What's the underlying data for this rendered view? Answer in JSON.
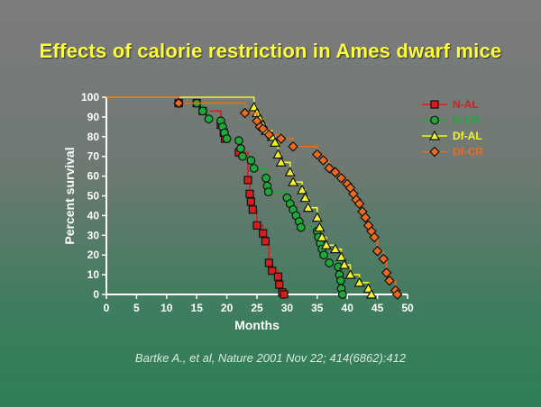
{
  "slide": {
    "title": "Effects of calorie restriction in Ames dwarf mice",
    "citation": "Bartke A., et al, Nature 2001 Nov 22; 414(6862):412"
  },
  "colors": {
    "N-AL": "#d81d1d",
    "N-CR": "#1fa83a",
    "Df-AL": "#f4f42a",
    "Df-CR": "#ee6a1c",
    "axis": "#ffffff"
  },
  "chart_data": {
    "type": "line",
    "step": true,
    "title": "",
    "xlabel": "Months",
    "ylabel": "Percent survival",
    "xlim": [
      0,
      50
    ],
    "ylim": [
      0,
      100
    ],
    "xticks": [
      0,
      5,
      10,
      15,
      20,
      25,
      30,
      35,
      40,
      45,
      50
    ],
    "yticks": [
      0,
      10,
      20,
      30,
      40,
      50,
      60,
      70,
      80,
      90,
      100
    ],
    "grid": false,
    "legend_position": "top-right",
    "series": [
      {
        "name": "N-AL",
        "marker": "square",
        "start": [
          0,
          100
        ],
        "points": [
          [
            12,
            97
          ],
          [
            15,
            97
          ],
          [
            16,
            93
          ],
          [
            19,
            86
          ],
          [
            19.5,
            82
          ],
          [
            19.7,
            79
          ],
          [
            22,
            72
          ],
          [
            23.5,
            58
          ],
          [
            23.8,
            51
          ],
          [
            24,
            47
          ],
          [
            24.3,
            43
          ],
          [
            25,
            35
          ],
          [
            26,
            31
          ],
          [
            26.4,
            27
          ],
          [
            27,
            16
          ],
          [
            27.5,
            12
          ],
          [
            28.5,
            9
          ],
          [
            28.7,
            5
          ],
          [
            29.2,
            1
          ],
          [
            29.5,
            0
          ]
        ]
      },
      {
        "name": "N-CR",
        "marker": "circle",
        "start": [
          0,
          100
        ],
        "points": [
          [
            12,
            97
          ],
          [
            15,
            97
          ],
          [
            16,
            93
          ],
          [
            17,
            89
          ],
          [
            19,
            88
          ],
          [
            19.3,
            85
          ],
          [
            19.6,
            82
          ],
          [
            20,
            79
          ],
          [
            22,
            78
          ],
          [
            22.3,
            74
          ],
          [
            22.6,
            70
          ],
          [
            24,
            68
          ],
          [
            24.5,
            64
          ],
          [
            26.5,
            59
          ],
          [
            26.7,
            55
          ],
          [
            26.9,
            52
          ],
          [
            30,
            49
          ],
          [
            30.5,
            46
          ],
          [
            31,
            43
          ],
          [
            31.5,
            40
          ],
          [
            32,
            37
          ],
          [
            32.3,
            34
          ],
          [
            35,
            32
          ],
          [
            35.2,
            29
          ],
          [
            35.5,
            26
          ],
          [
            35.8,
            23
          ],
          [
            36.1,
            20
          ],
          [
            37,
            16
          ],
          [
            38.5,
            14
          ],
          [
            38.7,
            10
          ],
          [
            38.9,
            7
          ],
          [
            39,
            3
          ],
          [
            39.2,
            0
          ]
        ]
      },
      {
        "name": "Df-AL",
        "marker": "triangle",
        "start": [
          0,
          100
        ],
        "points": [
          [
            24.5,
            95
          ],
          [
            25,
            92
          ],
          [
            25.5,
            89
          ],
          [
            26,
            86
          ],
          [
            26.5,
            83
          ],
          [
            27.5,
            80
          ],
          [
            28,
            77
          ],
          [
            28.5,
            71
          ],
          [
            29,
            67
          ],
          [
            30.5,
            62
          ],
          [
            31,
            57
          ],
          [
            32.5,
            53
          ],
          [
            33,
            49
          ],
          [
            33.5,
            44
          ],
          [
            35,
            39
          ],
          [
            35.4,
            34
          ],
          [
            35.8,
            29
          ],
          [
            36.5,
            25
          ],
          [
            38,
            23
          ],
          [
            39,
            19
          ],
          [
            39.5,
            15
          ],
          [
            40.5,
            10
          ],
          [
            42,
            6
          ],
          [
            43.5,
            3
          ],
          [
            44,
            0
          ]
        ]
      },
      {
        "name": "Df-CR",
        "marker": "diamond",
        "start": [
          0,
          100
        ],
        "points": [
          [
            12,
            97
          ],
          [
            23,
            92
          ],
          [
            25,
            88
          ],
          [
            25.5,
            85
          ],
          [
            26,
            84
          ],
          [
            27,
            81
          ],
          [
            29,
            79
          ],
          [
            31,
            75
          ],
          [
            35,
            71
          ],
          [
            36,
            68
          ],
          [
            37,
            64
          ],
          [
            38,
            62
          ],
          [
            39,
            59
          ],
          [
            40,
            56
          ],
          [
            40.5,
            54
          ],
          [
            41,
            51
          ],
          [
            41.5,
            48
          ],
          [
            42,
            46
          ],
          [
            42.5,
            42
          ],
          [
            43,
            39
          ],
          [
            43.5,
            35
          ],
          [
            44,
            32
          ],
          [
            44.5,
            29
          ],
          [
            45,
            22
          ],
          [
            46,
            18
          ],
          [
            46.5,
            11
          ],
          [
            47,
            7
          ],
          [
            48,
            2
          ],
          [
            48.3,
            0
          ]
        ]
      }
    ]
  }
}
